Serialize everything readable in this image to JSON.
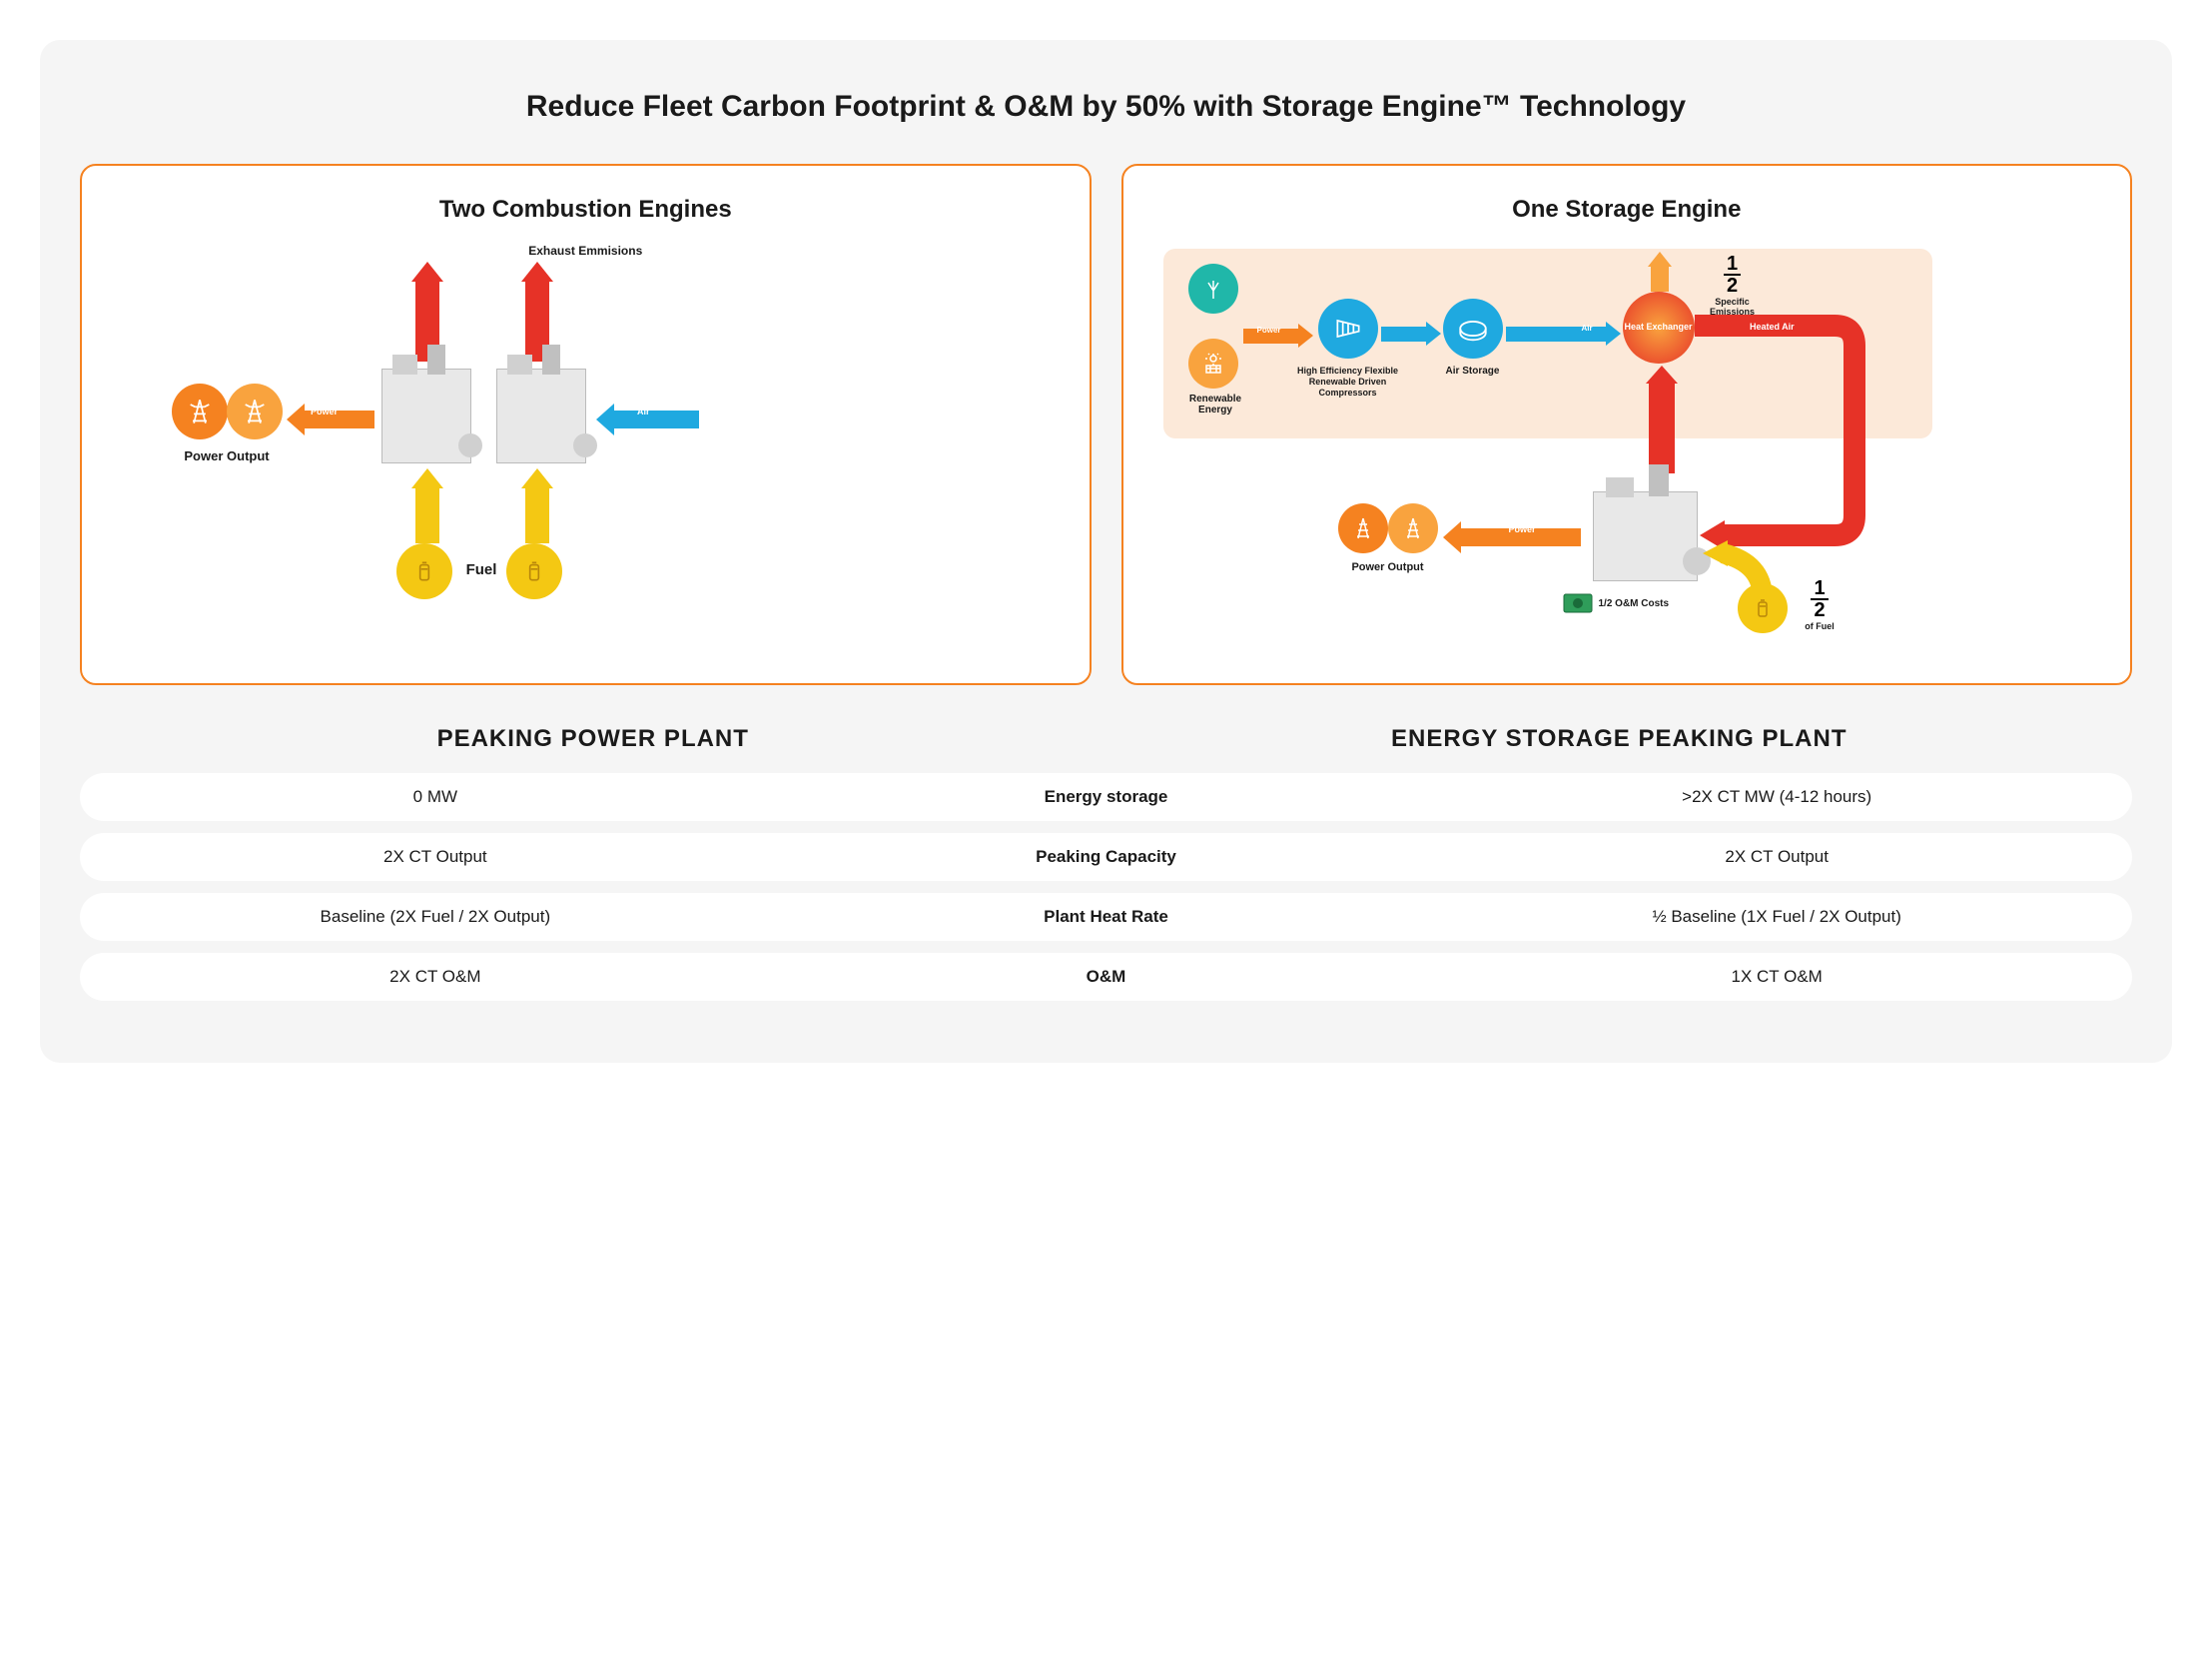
{
  "title": "Reduce Fleet Carbon Footprint & O&M by 50% with Storage Engine™ Technology",
  "left_panel": {
    "title": "Two Combustion Engines",
    "exhaust_label": "Exhaust Emmisions",
    "power_output_label": "Power Output",
    "fuel_label": "Fuel",
    "power_tag": "Power",
    "air_tag": "Air"
  },
  "right_panel": {
    "title": "One Storage Engine",
    "renewable_label": "Renewable Energy",
    "compressor_label": "High Efficiency Flexible Renewable Driven Compressors",
    "air_storage_label": "Air Storage",
    "heat_exchanger_label": "Heat Exchanger",
    "emissions_frac": {
      "num": "1",
      "den": "2",
      "label": "Specific Emissions"
    },
    "heated_air_tag": "Heated Air",
    "power_output_label": "Power Output",
    "om_costs_label": "1/2 O&M Costs",
    "fuel_frac": {
      "num": "1",
      "den": "2",
      "label": "of Fuel"
    },
    "power_tag": "Power",
    "air_tag": "Air"
  },
  "section_left_title": "PEAKING POWER PLANT",
  "section_right_title": "ENERGY STORAGE PEAKING PLANT",
  "rows": [
    {
      "left": "0 MW",
      "metric": "Energy storage",
      "right": ">2X CT MW (4-12 hours)"
    },
    {
      "left": "2X CT Output",
      "metric": "Peaking Capacity",
      "right": "2X CT Output"
    },
    {
      "left": "Baseline (2X Fuel / 2X Output)",
      "metric": "Plant Heat Rate",
      "right": "½ Baseline (1X Fuel / 2X Output)"
    },
    {
      "left": "2X CT O&M",
      "metric": "O&M",
      "right": "1X CT O&M"
    }
  ],
  "colors": {
    "orange": "#f58220",
    "orange2": "#f9a33e",
    "yellow": "#f4c813",
    "red": "#e63227",
    "blue": "#1fa9e0",
    "teal": "#20b7a9",
    "beige": "#fce9d9",
    "green": "#2f9d5a"
  }
}
